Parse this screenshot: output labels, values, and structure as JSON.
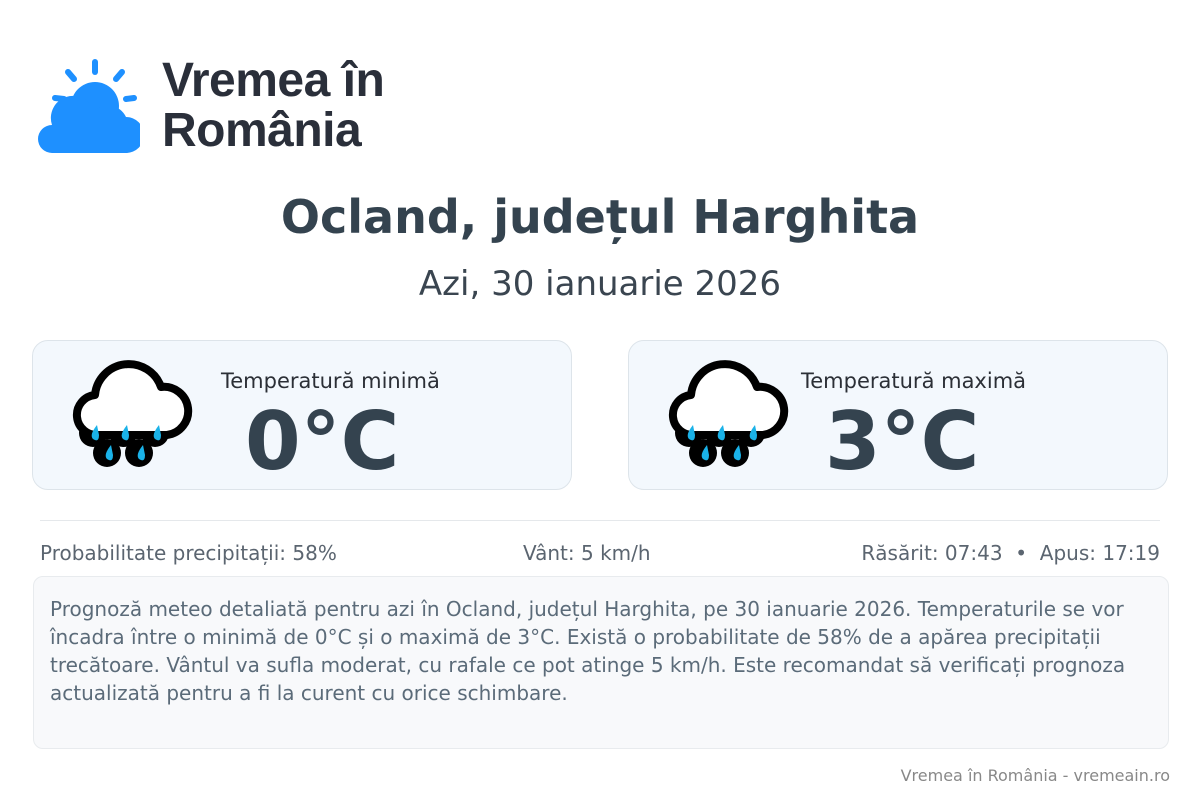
{
  "brand": {
    "line1": "Vremea în",
    "line2": "România",
    "color": "#1e90ff"
  },
  "header": {
    "title": "Ocland, județul Harghita",
    "subtitle": "Azi, 30 ianuarie 2026"
  },
  "cards": [
    {
      "label": "Temperatură minimă",
      "value": "0°C",
      "icon": "rain-cloud-icon"
    },
    {
      "label": "Temperatură maximă",
      "value": "3°C",
      "icon": "rain-cloud-icon"
    }
  ],
  "stats": {
    "precip": "Probabilitate precipitații: 58%",
    "wind": "Vânt: 5 km/h",
    "sun": "Răsărit: 07:43  •  Apus: 17:19"
  },
  "description": "Prognoză meteo detaliată pentru azi în Ocland, județul Harghita, pe 30 ianuarie 2026. Temperaturile se vor încadra între o minimă de 0°C și o maximă de 3°C. Există o probabilitate de 58% de a apărea precipitații trecătoare. Vântul va sufla moderat, cu rafale ce pot atinge 5 km/h. Este recomandat să verificați prognoza actualizată pentru a fi la curent cu orice schimbare.",
  "footer": "Vremea în România - vremeain.ro"
}
